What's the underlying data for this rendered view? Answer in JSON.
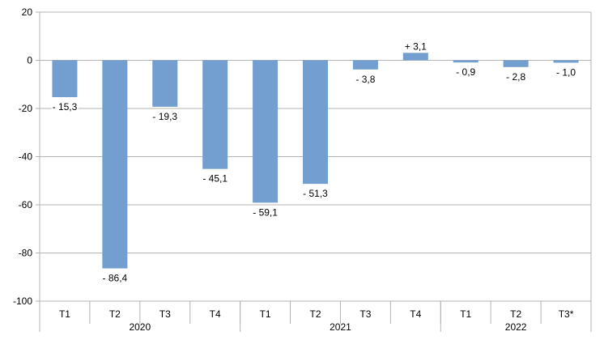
{
  "chart_data": {
    "type": "bar",
    "categories": [
      "T1",
      "T2",
      "T3",
      "T4",
      "T1",
      "T2",
      "T3",
      "T4",
      "T1",
      "T2",
      "T3*"
    ],
    "groups": [
      {
        "label": "2020",
        "count": 4
      },
      {
        "label": "2021",
        "count": 4
      },
      {
        "label": "2022",
        "count": 3
      }
    ],
    "values": [
      -15.3,
      -86.4,
      -19.3,
      -45.1,
      -59.1,
      -51.3,
      -3.8,
      3.1,
      -0.9,
      -2.8,
      -1.0
    ],
    "data_labels": [
      "- 15,3",
      "- 86,4",
      "- 19,3",
      "- 45,1",
      "- 59,1",
      "- 51,3",
      "- 3,8",
      "+ 3,1",
      "- 0,9",
      "- 2,8",
      "- 1,0"
    ],
    "title": "",
    "xlabel": "",
    "ylabel": "",
    "ylim": [
      -100,
      20
    ],
    "yticks": [
      20,
      0,
      -20,
      -40,
      -60,
      -80,
      -100
    ],
    "grid": true,
    "legend": "none",
    "bar_color": "#729fcf",
    "grid_color": "#b3b3b3"
  }
}
